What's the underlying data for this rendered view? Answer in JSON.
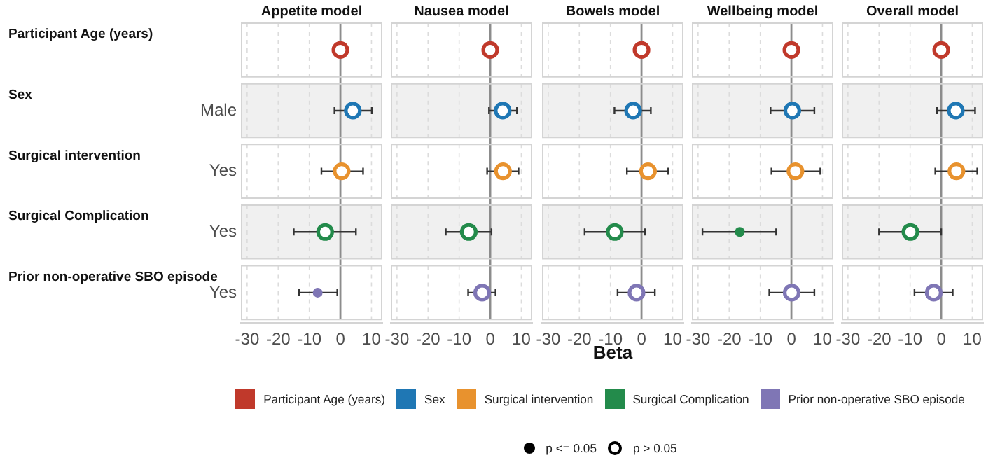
{
  "chart_data": [
    {
      "type": "scatter",
      "title": "Appetite model",
      "orientation": "horizontal",
      "categories": [
        null,
        "Male",
        "Yes",
        "Yes",
        "Yes"
      ],
      "colors": [
        "#c0392b",
        "#1f77b4",
        "#e8922e",
        "#238b4b",
        "#7f76b5"
      ],
      "annotations": [
        "Participant Age (years)",
        "Sex",
        "Surgical intervention",
        "Surgical Complication",
        "Prior non-operative SBO episode"
      ],
      "series": [
        {
          "values": [
            null,
            null,
            null,
            null,
            -7.3
          ],
          "errors": [
            null,
            null,
            null,
            null,
            [
              -13.3,
              -1
            ]
          ]
        },
        {
          "values": [
            0,
            4,
            0.4,
            -4.9,
            null
          ],
          "errors": [
            null,
            [
              -1.9,
              10.1
            ],
            [
              -6.1,
              7.3
            ],
            [
              -15,
              5
            ],
            null
          ]
        }
      ],
      "xlim": [
        -32,
        13.5
      ],
      "xticks": [
        -30,
        -20,
        -10,
        0,
        10
      ],
      "grid": "x",
      "ref_lines": [
        {
          "axis": "x",
          "value": 0,
          "color": "#8c8c8c"
        }
      ]
    },
    {
      "type": "scatter",
      "title": "Nausea model",
      "orientation": "horizontal",
      "categories": [
        null,
        null,
        null,
        null,
        null
      ],
      "colors": [
        "#c0392b",
        "#1f77b4",
        "#e8922e",
        "#238b4b",
        "#7f76b5"
      ],
      "series": [
        {
          "values": [
            null,
            null,
            null,
            null,
            null
          ]
        },
        {
          "values": [
            0,
            4,
            4.1,
            -6.9,
            -2.6
          ],
          "errors": [
            null,
            [
              -0.4,
              8.6
            ],
            [
              -1,
              9.1
            ],
            [
              -14.3,
              0.4
            ],
            [
              -7.1,
              1.7
            ]
          ]
        }
      ],
      "xlim": [
        -32,
        13.5
      ],
      "xticks": [
        -30,
        -20,
        -10,
        0,
        10
      ],
      "grid": "x",
      "ref_lines": [
        {
          "axis": "x",
          "value": 0,
          "color": "#8c8c8c"
        }
      ],
      "tick_labels": "x"
    },
    {
      "type": "scatter",
      "title": "Bowels model",
      "xlabel": "Beta",
      "orientation": "horizontal",
      "categories": [
        null,
        null,
        null,
        null,
        null
      ],
      "colors": [
        "#c0392b",
        "#1f77b4",
        "#e8922e",
        "#238b4b",
        "#7f76b5"
      ],
      "annotations": [
        "p <= 0.05",
        "p > 0.05"
      ],
      "series": [
        {
          "values": [
            null,
            null,
            null,
            null,
            null
          ]
        },
        {
          "values": [
            0,
            -2.7,
            2.1,
            -8.6,
            -1.6
          ],
          "errors": [
            null,
            [
              -8.7,
              3
            ],
            [
              -4.7,
              8.6
            ],
            [
              -18.3,
              1.1
            ],
            [
              -7.7,
              4.3
            ]
          ]
        }
      ],
      "xlim": [
        -32,
        13.5
      ],
      "xticks": [
        -30,
        -20,
        -10,
        0,
        10
      ],
      "grid": "x",
      "ref_lines": [
        {
          "axis": "x",
          "value": 0,
          "color": "#8c8c8c"
        }
      ],
      "tick_labels": "x"
    },
    {
      "type": "scatter",
      "title": "Wellbeing model",
      "orientation": "horizontal",
      "categories": [
        null,
        null,
        null,
        null,
        null
      ],
      "colors": [
        "#c0392b",
        "#1f77b4",
        "#e8922e",
        "#238b4b",
        "#7f76b5"
      ],
      "series": [
        {
          "values": [
            null,
            null,
            null,
            -16.6,
            null
          ],
          "errors": [
            null,
            null,
            null,
            [
              -28.6,
              -4.9
            ],
            null
          ]
        },
        {
          "values": [
            0,
            0.3,
            1.3,
            null,
            0.1
          ],
          "errors": [
            null,
            [
              -6.7,
              7.4
            ],
            [
              -6.4,
              9.3
            ],
            null,
            [
              -7.1,
              7.4
            ]
          ]
        }
      ],
      "xlim": [
        -32,
        13.5
      ],
      "xticks": [
        -30,
        -20,
        -10,
        0,
        10
      ],
      "grid": "x",
      "ref_lines": [
        {
          "axis": "x",
          "value": 0,
          "color": "#8c8c8c"
        }
      ],
      "tick_labels": "x"
    },
    {
      "type": "scatter",
      "title": "Overall model",
      "orientation": "horizontal",
      "categories": [
        null,
        null,
        null,
        null,
        null
      ],
      "colors": [
        "#c0392b",
        "#1f77b4",
        "#e8922e",
        "#238b4b",
        "#7f76b5"
      ],
      "series": [
        {
          "values": [
            null,
            null,
            null,
            null,
            null
          ]
        },
        {
          "values": [
            0,
            4.7,
            4.9,
            -9.9,
            -2.4
          ],
          "errors": [
            null,
            [
              -1.4,
              10.9
            ],
            [
              -1.9,
              11.6
            ],
            [
              -20,
              0
            ],
            [
              -8.6,
              3.7
            ]
          ]
        }
      ],
      "xlim": [
        -32,
        13.5
      ],
      "xticks": [
        -30,
        -20,
        -10,
        0,
        10
      ],
      "grid": "x",
      "ref_lines": [
        {
          "axis": "x",
          "value": 0,
          "color": "#8c8c8c"
        }
      ],
      "tick_labels": "x"
    }
  ]
}
